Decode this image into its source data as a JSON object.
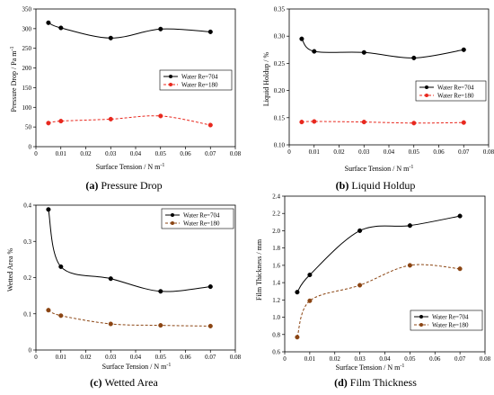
{
  "figure": {
    "panels": [
      {
        "caption_label": "(a)",
        "caption_text": "Pressure Drop",
        "xlabel": "Surface Tension / N m",
        "xlabel_sup": "-1",
        "ylabel": "Pressure Drop / Pa m",
        "ylabel_sup": "-1"
      },
      {
        "caption_label": "(b)",
        "caption_text": "Liquid Holdup",
        "xlabel": "Surface Tension / N m",
        "xlabel_sup": "-1",
        "ylabel": "Liquid Holdup / %",
        "ylabel_sup": ""
      },
      {
        "caption_label": "(c)",
        "caption_text": "Wetted Area",
        "xlabel": "Surface Tension / N m",
        "xlabel_sup": "-1",
        "ylabel": "Wetted Area %",
        "ylabel_sup": ""
      },
      {
        "caption_label": "(d)",
        "caption_text": "Film Thickness",
        "xlabel": "Surface Tension / N m",
        "xlabel_sup": "-1",
        "ylabel": "Film Thickness / mm",
        "ylabel_sup": ""
      }
    ]
  },
  "chart_data": [
    {
      "type": "line",
      "title": "",
      "xlabel": "Surface Tension / N m-1",
      "ylabel": "Pressure Drop / Pa m-1",
      "xlim": [
        0,
        0.08
      ],
      "ylim": [
        0,
        350
      ],
      "xticks": [
        "0",
        "0.01",
        "0.02",
        "0.03",
        "0.04",
        "0.05",
        "0.06",
        "0.07",
        "0.08"
      ],
      "yticks": [
        "0",
        "50",
        "100",
        "150",
        "200",
        "250",
        "300",
        "350"
      ],
      "legend_position": "middle-right",
      "series": [
        {
          "name": "Water Re=704",
          "color": "#000000",
          "dashed": false,
          "x": [
            0.005,
            0.01,
            0.03,
            0.05,
            0.07
          ],
          "y": [
            315,
            302,
            276,
            299,
            292
          ]
        },
        {
          "name": "Water Re=180",
          "color": "#e8281e",
          "dashed": true,
          "x": [
            0.005,
            0.01,
            0.03,
            0.05,
            0.07
          ],
          "y": [
            60,
            65,
            70,
            78,
            55
          ]
        }
      ]
    },
    {
      "type": "line",
      "title": "",
      "xlabel": "Surface Tension / N m-1",
      "ylabel": "Liquid Holdup / %",
      "xlim": [
        0,
        0.08
      ],
      "ylim": [
        0.1,
        0.35
      ],
      "xticks": [
        "0",
        "0.01",
        "0.02",
        "0.03",
        "0.04",
        "0.05",
        "0.06",
        "0.07",
        "0.08"
      ],
      "yticks": [
        "0.10",
        "0.15",
        "0.20",
        "0.25",
        "0.30",
        "0.35"
      ],
      "legend_position": "middle-right",
      "series": [
        {
          "name": "Water Re=704",
          "color": "#000000",
          "dashed": false,
          "x": [
            0.005,
            0.01,
            0.03,
            0.05,
            0.07
          ],
          "y": [
            0.295,
            0.272,
            0.27,
            0.26,
            0.275
          ]
        },
        {
          "name": "Water Re=180",
          "color": "#e8281e",
          "dashed": true,
          "x": [
            0.005,
            0.01,
            0.03,
            0.05,
            0.07
          ],
          "y": [
            0.142,
            0.143,
            0.142,
            0.14,
            0.141
          ]
        }
      ]
    },
    {
      "type": "line",
      "title": "",
      "xlabel": "Surface Tension / N m-1",
      "ylabel": "Wetted Area %",
      "xlim": [
        0,
        0.08
      ],
      "ylim": [
        0,
        0.4
      ],
      "xticks": [
        "0",
        "0.01",
        "0.02",
        "0.03",
        "0.04",
        "0.05",
        "0.06",
        "0.07",
        "0.08"
      ],
      "yticks": [
        "0",
        "0.1",
        "0.2",
        "0.3",
        "0.4"
      ],
      "legend_position": "top-right",
      "series": [
        {
          "name": "Water Re=704",
          "color": "#000000",
          "dashed": false,
          "x": [
            0.005,
            0.01,
            0.03,
            0.05,
            0.07
          ],
          "y": [
            0.388,
            0.23,
            0.197,
            0.162,
            0.175
          ]
        },
        {
          "name": "Water Re=180",
          "color": "#8b4513",
          "dashed": true,
          "x": [
            0.005,
            0.01,
            0.03,
            0.05,
            0.07
          ],
          "y": [
            0.11,
            0.095,
            0.072,
            0.068,
            0.066
          ]
        }
      ]
    },
    {
      "type": "line",
      "title": "",
      "xlabel": "Surface Tension / N m-1",
      "ylabel": "Film Thickness / mm",
      "xlim": [
        0,
        0.08
      ],
      "ylim": [
        0.6,
        2.4
      ],
      "xticks": [
        "0",
        "0.01",
        "0.02",
        "0.03",
        "0.04",
        "0.05",
        "0.06",
        "0.07",
        "0.08"
      ],
      "yticks": [
        "0.6",
        "0.8",
        "1.0",
        "1.2",
        "1.4",
        "1.6",
        "1.8",
        "2.0",
        "2.2",
        "2.4"
      ],
      "legend_position": "bottom-right",
      "series": [
        {
          "name": "Water Re=704",
          "color": "#000000",
          "dashed": false,
          "x": [
            0.005,
            0.01,
            0.03,
            0.05,
            0.07
          ],
          "y": [
            1.29,
            1.49,
            2.0,
            2.06,
            2.17
          ]
        },
        {
          "name": "Water Re=180",
          "color": "#8b4513",
          "dashed": true,
          "x": [
            0.005,
            0.01,
            0.03,
            0.05,
            0.07
          ],
          "y": [
            0.77,
            1.19,
            1.37,
            1.6,
            1.56
          ]
        }
      ]
    }
  ]
}
